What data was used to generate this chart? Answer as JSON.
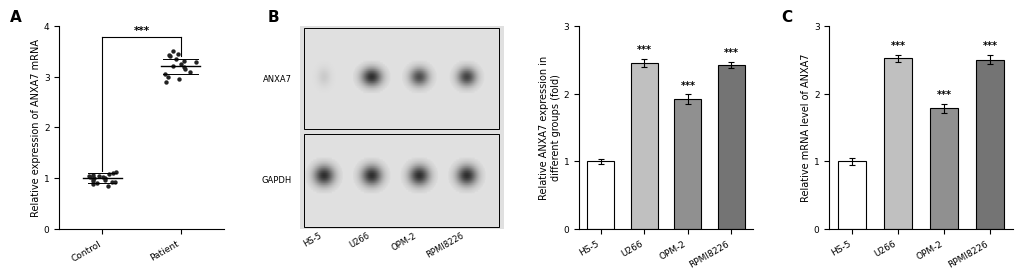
{
  "panel_A": {
    "label": "A",
    "ylabel": "Relative expression of ANXA7 mRNA",
    "ylim": [
      0,
      4
    ],
    "yticks": [
      0,
      1,
      2,
      3,
      4
    ],
    "groups": [
      "Control",
      "Patient"
    ],
    "control_dots": [
      1.05,
      0.92,
      1.08,
      1.0,
      0.88,
      0.95,
      1.02,
      1.1,
      0.97,
      0.85,
      1.05,
      1.12,
      0.93,
      1.0,
      0.98,
      1.06,
      0.9,
      1.03
    ],
    "patient_dots": [
      3.45,
      3.5,
      3.15,
      3.0,
      3.2,
      3.35,
      2.95,
      3.1,
      3.4,
      3.25,
      3.3,
      3.05,
      3.18,
      3.42,
      2.9,
      3.28
    ],
    "control_mean": 1.0,
    "control_sd": 0.1,
    "patient_mean": 3.2,
    "patient_sd": 0.15,
    "sig_text": "***",
    "dot_color": "#222222",
    "dot_size": 10
  },
  "panel_B_bar": {
    "categories": [
      "HS-5",
      "U266",
      "OPM-2",
      "RPMI8226"
    ],
    "values": [
      1.0,
      2.45,
      1.92,
      2.42
    ],
    "errors": [
      0.04,
      0.06,
      0.07,
      0.05
    ],
    "colors": [
      "#ffffff",
      "#c0c0c0",
      "#909090",
      "#747474"
    ],
    "ylabel": "Relative ANXA7 expression in\ndifferent groups (fold)",
    "ylim": [
      0,
      3
    ],
    "yticks": [
      0,
      1,
      2,
      3
    ],
    "sig_labels": [
      "",
      "***",
      "***",
      "***"
    ]
  },
  "panel_C": {
    "label": "C",
    "categories": [
      "HS-5",
      "U266",
      "OPM-2",
      "RPMI8226"
    ],
    "values": [
      1.0,
      2.52,
      1.78,
      2.5
    ],
    "errors": [
      0.05,
      0.05,
      0.07,
      0.07
    ],
    "colors": [
      "#ffffff",
      "#c0c0c0",
      "#909090",
      "#747474"
    ],
    "ylabel": "Relative mRNA level of ANXA7",
    "ylim": [
      0,
      3
    ],
    "yticks": [
      0,
      1,
      2,
      3
    ],
    "sig_labels": [
      "",
      "***",
      "***",
      "***"
    ]
  },
  "blot": {
    "anxa7_label": "ANXA7",
    "gapdh_label": "GAPDH",
    "xtick_labels": [
      "HS-5",
      "U266",
      "OPM-2",
      "RPMI8226"
    ],
    "anxa7_intensities": [
      0.25,
      1.0,
      0.85,
      0.9
    ],
    "gapdh_intensities": [
      1.0,
      1.0,
      1.0,
      1.0
    ],
    "bg_color": 0.88
  },
  "background_color": "#ffffff",
  "bar_edge_color": "#000000",
  "axis_linewidth": 0.8,
  "label_fontsize": 7.5,
  "tick_fontsize": 6.5,
  "sig_fontsize": 7.5,
  "panel_label_fontsize": 11
}
